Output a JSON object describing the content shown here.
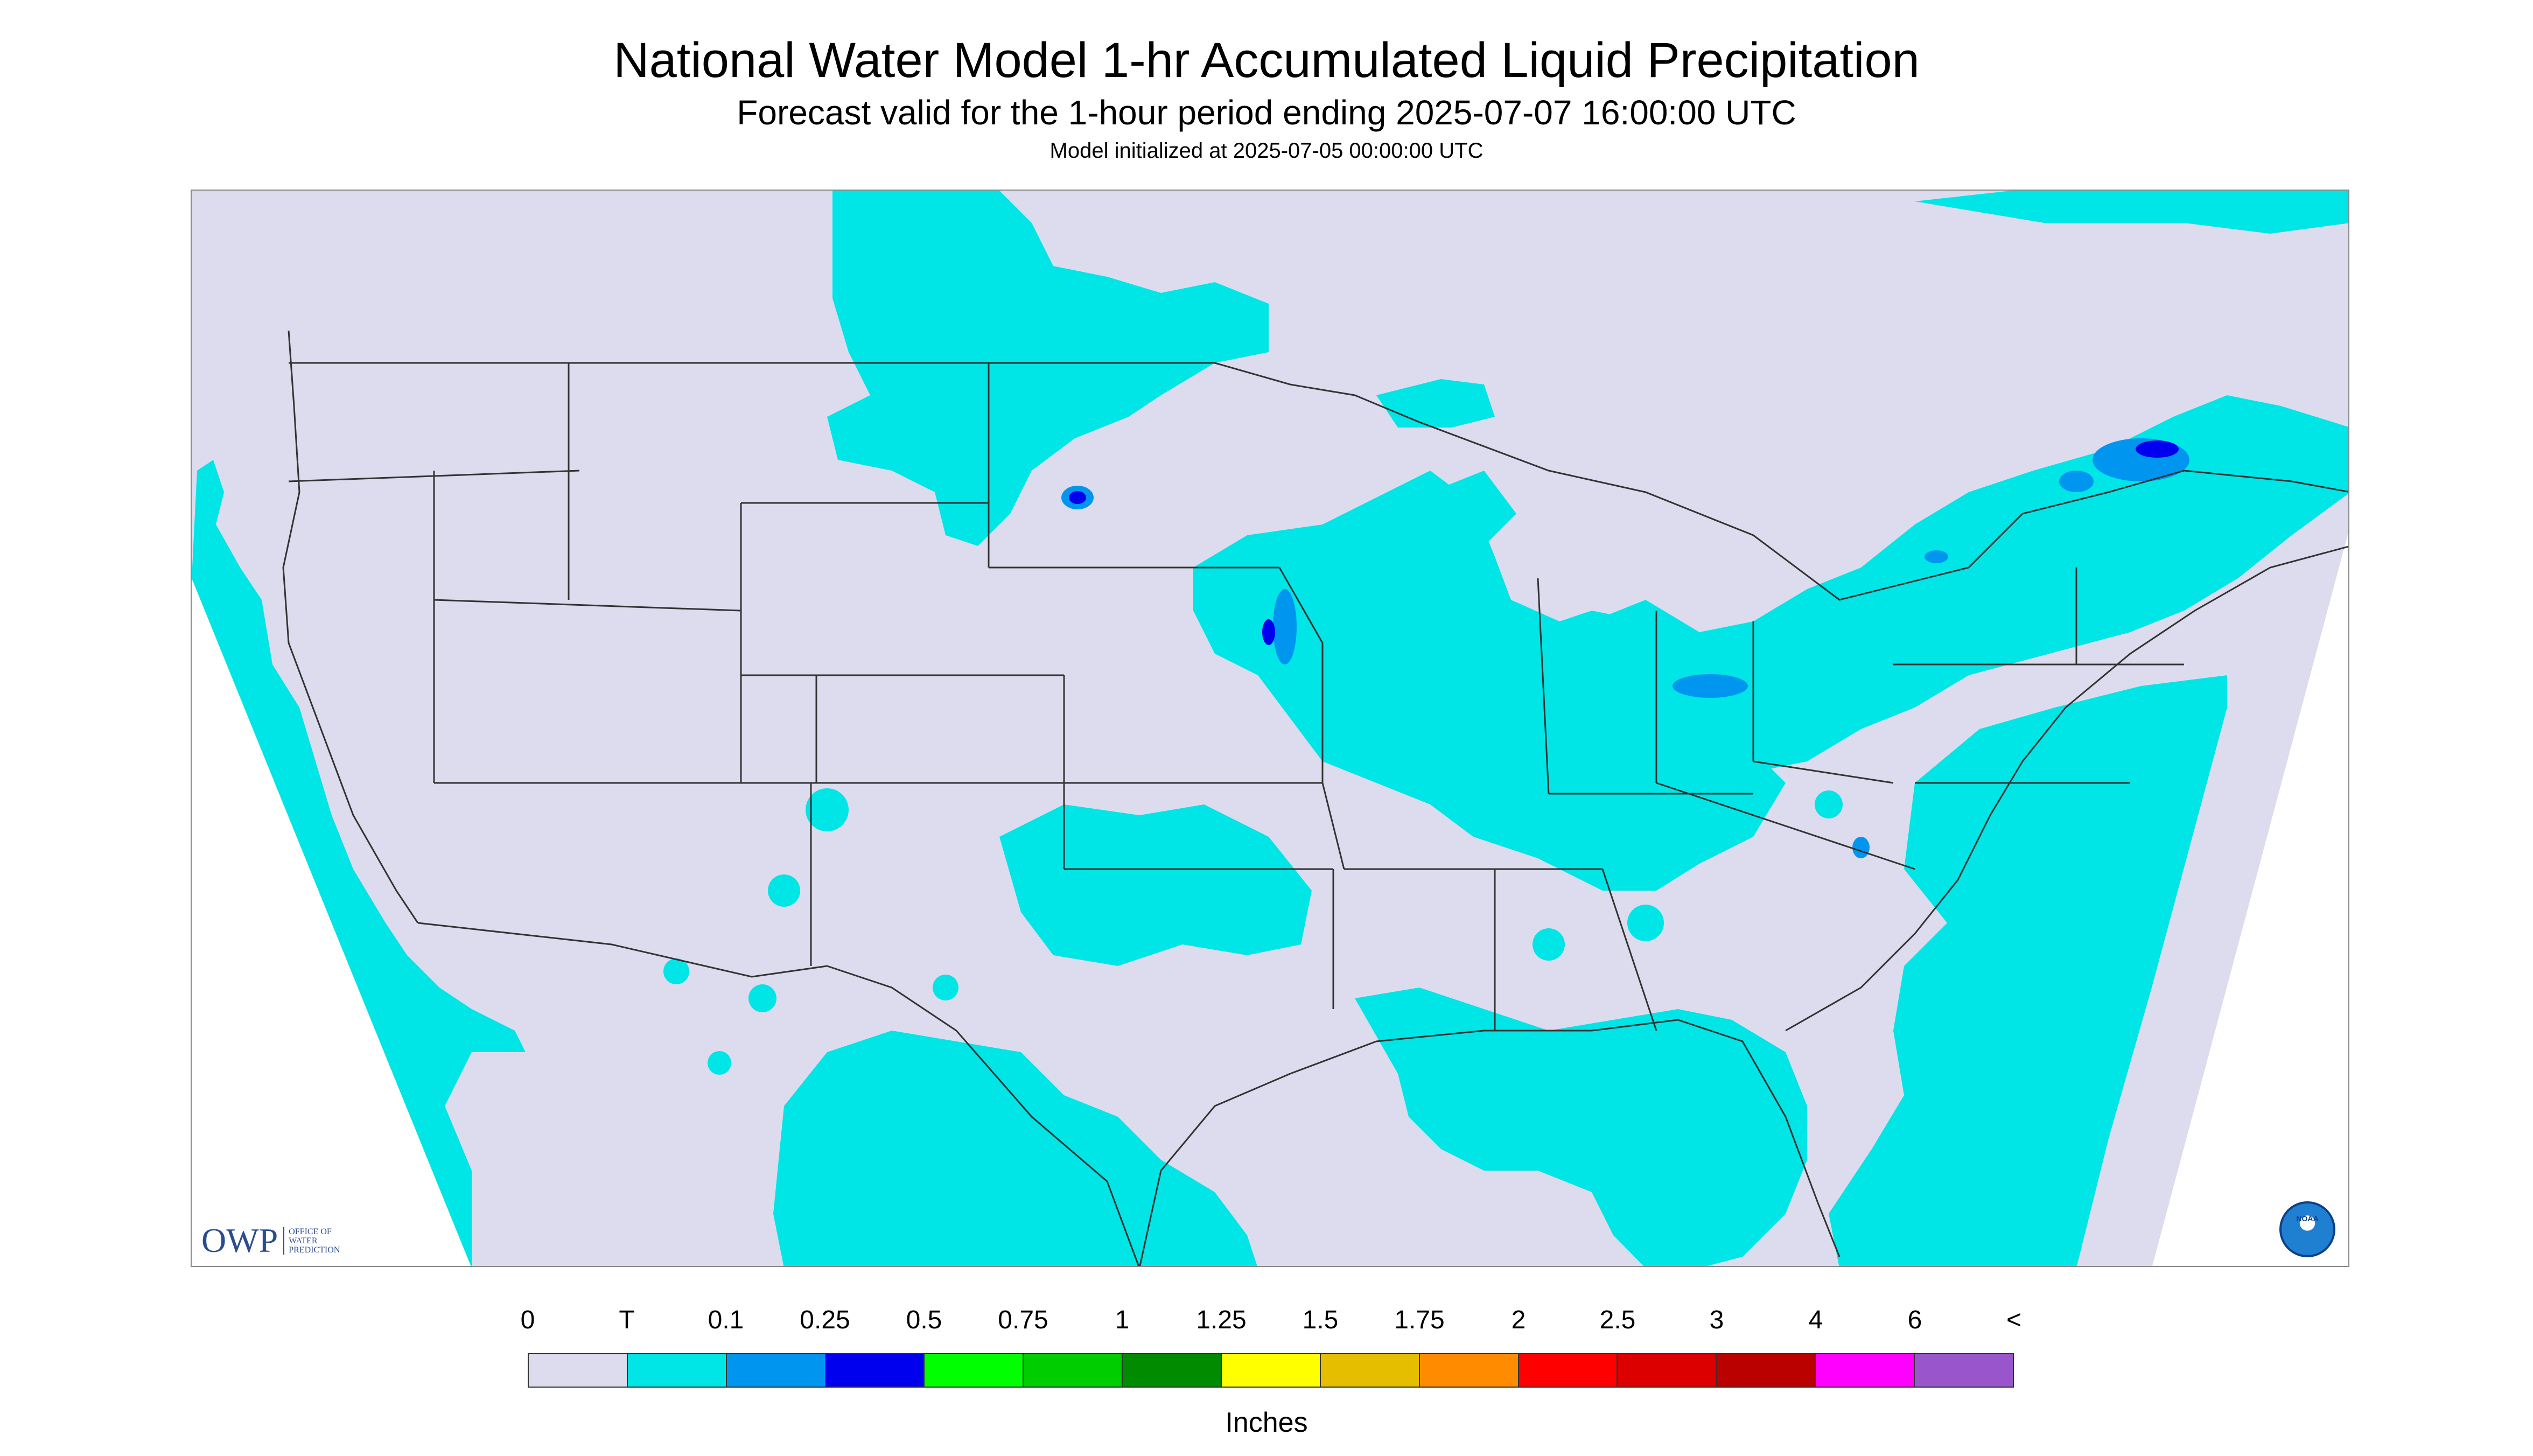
{
  "header": {
    "title": "National Water Model 1-hr Accumulated Liquid Precipitation",
    "subtitle": "Forecast valid for the 1-hour period ending 2025-07-07 16:00:00 UTC",
    "model_init": "Model initialized at 2025-07-05 00:00:00 UTC"
  },
  "logos": {
    "owp_main": "OWP",
    "owp_sub_1": "OFFICE OF",
    "owp_sub_2": "WATER",
    "owp_sub_3": "PREDICTION",
    "noaa": "NOAA"
  },
  "colors": {
    "no_data": "#ffffff",
    "domain_background": "#dcdcee",
    "trace": "#00e5e5",
    "boundary_lines": "#333333"
  },
  "legend": {
    "units": "Inches",
    "labels": [
      "0",
      "T",
      "0.1",
      "0.25",
      "0.5",
      "0.75",
      "1",
      "1.25",
      "1.5",
      "1.75",
      "2",
      "2.5",
      "3",
      "4",
      "6",
      "<"
    ],
    "colors": [
      "#dcdcee",
      "#00e5e5",
      "#0096f0",
      "#0000ee",
      "#00ff00",
      "#00cd00",
      "#008b00",
      "#ffff00",
      "#e6be00",
      "#ff8c00",
      "#ff0000",
      "#dd0000",
      "#bb0000",
      "#ff00ff",
      "#9955cc"
    ]
  }
}
